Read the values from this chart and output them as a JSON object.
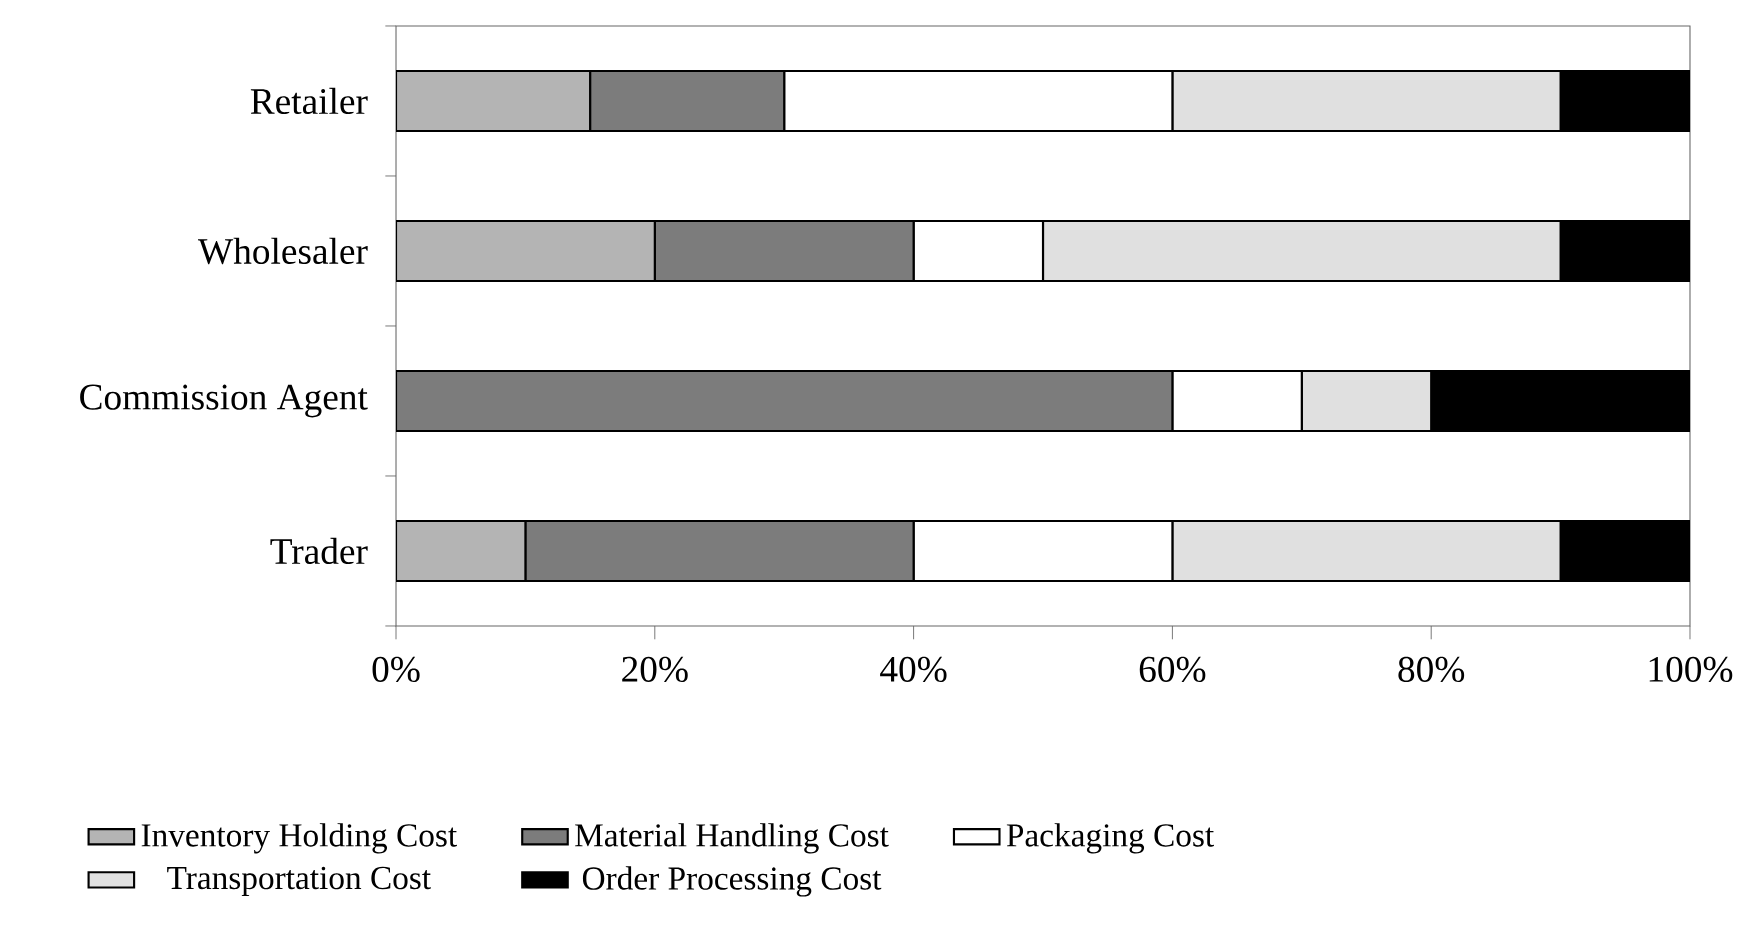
{
  "chart_data": {
    "type": "bar",
    "orientation": "horizontal",
    "stacked": true,
    "categories": [
      "Retailer",
      "Wholesaler",
      "Commission Agent",
      "Trader"
    ],
    "series": [
      {
        "name": "Inventory Holding Cost",
        "color": "#b4b4b4",
        "values": [
          15,
          20,
          0,
          10
        ]
      },
      {
        "name": "Material Handling Cost",
        "color": "#7c7c7c",
        "values": [
          15,
          20,
          60,
          30
        ]
      },
      {
        "name": "Packaging Cost",
        "color": "#ffffff",
        "values": [
          30,
          10,
          10,
          20
        ]
      },
      {
        "name": "Transportation Cost",
        "color": "#e0e0e0",
        "values": [
          30,
          40,
          10,
          30
        ]
      },
      {
        "name": "Order Processing Cost",
        "color": "#000000",
        "values": [
          10,
          10,
          20,
          10
        ]
      }
    ],
    "xlim": [
      0,
      100
    ],
    "xticks": [
      {
        "value": 0,
        "label": "0%"
      },
      {
        "value": 20,
        "label": "20%"
      },
      {
        "value": 40,
        "label": "40%"
      },
      {
        "value": 60,
        "label": "60%"
      },
      {
        "value": 80,
        "label": "80%"
      },
      {
        "value": 100,
        "label": "100%"
      }
    ],
    "legend": "bottom",
    "grid": false
  }
}
